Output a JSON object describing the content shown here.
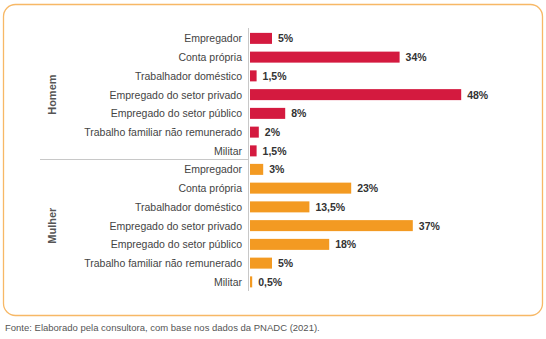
{
  "chart_data": [
    {
      "type": "bar",
      "orientation": "horizontal",
      "title": "Homem",
      "categories": [
        "Empregador",
        "Conta própria",
        "Trabalhador doméstico",
        "Empregado do setor privado",
        "Empregado do setor público",
        "Trabalho familiar não remunerado",
        "Militar"
      ],
      "values": [
        5,
        34,
        1.5,
        48,
        8,
        2,
        1.5
      ],
      "value_labels": [
        "5%",
        "34%",
        "1,5%",
        "48%",
        "8%",
        "2%",
        "1,5%"
      ],
      "color": "#d41a3f",
      "xlim": [
        0,
        50
      ],
      "data_labels": true,
      "tick_labels": "y",
      "grid": false
    },
    {
      "type": "bar",
      "orientation": "horizontal",
      "title": "Mulher",
      "categories": [
        "Empregador",
        "Conta própria",
        "Trabalhador doméstico",
        "Empregado do setor privado",
        "Empregado do setor público",
        "Trabalho familiar não remunerado",
        "Militar"
      ],
      "values": [
        3,
        23,
        13.5,
        37,
        18,
        5,
        0.5
      ],
      "value_labels": [
        "3%",
        "23%",
        "13,5%",
        "37%",
        "18%",
        "5%",
        "0,5%"
      ],
      "color": "#f39a22",
      "xlim": [
        0,
        50
      ],
      "data_labels": true,
      "tick_labels": "y",
      "grid": false
    }
  ],
  "source": "Fonte: Elaborado pela consultora, com base nos dados da PNADC (2021)."
}
